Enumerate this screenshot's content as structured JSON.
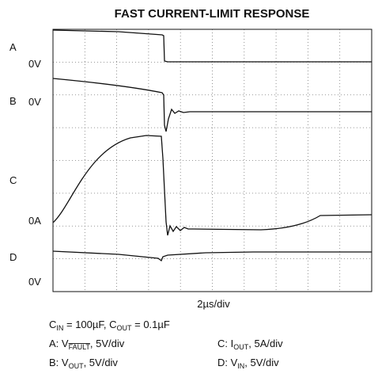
{
  "title": "FAST CURRENT-LIMIT RESPONSE",
  "channels": [
    {
      "name": "A",
      "zero": "0V"
    },
    {
      "name": "B",
      "zero": "0V"
    },
    {
      "name": "C",
      "zero": "0A"
    },
    {
      "name": "D",
      "zero": "0V"
    }
  ],
  "timebase": "2µs/div",
  "notes": {
    "conditions": [
      "C",
      "IN",
      " = 100µF,  C",
      "OUT",
      " = 0.1µF"
    ],
    "a": [
      "A: V",
      "FAULT",
      ", 5V/div"
    ],
    "b": [
      "B: V",
      "OUT",
      ", 5V/div"
    ],
    "c": [
      "C: I",
      "OUT",
      ", 5A/div"
    ],
    "d": [
      "D: V",
      "IN",
      ", 5V/div"
    ]
  }
}
